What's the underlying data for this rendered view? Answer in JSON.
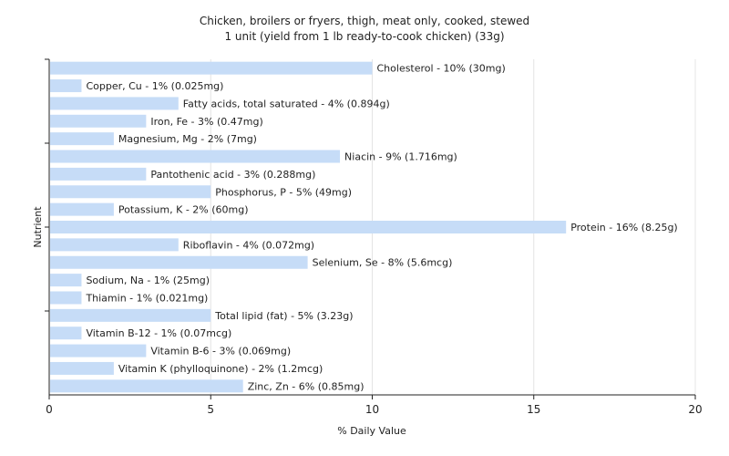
{
  "chart_data": {
    "type": "bar",
    "orientation": "horizontal",
    "title": "Chicken, broilers or fryers, thigh, meat only, cooked, stewed",
    "subtitle": "1 unit (yield from 1 lb ready-to-cook chicken) (33g)",
    "xlabel": "% Daily Value",
    "ylabel": "Nutrient",
    "xlim": [
      0,
      20
    ],
    "xticks": [
      "0",
      "5",
      "10",
      "15",
      "20"
    ],
    "grid": true,
    "bar_color": "#c6dcf7",
    "categories": [
      "Cholesterol",
      "Copper, Cu",
      "Fatty acids, total saturated",
      "Iron, Fe",
      "Magnesium, Mg",
      "Niacin",
      "Pantothenic acid",
      "Phosphorus, P",
      "Potassium, K",
      "Protein",
      "Riboflavin",
      "Selenium, Se",
      "Sodium, Na",
      "Thiamin",
      "Total lipid (fat)",
      "Vitamin B-12",
      "Vitamin B-6",
      "Vitamin K (phylloquinone)",
      "Zinc, Zn"
    ],
    "values": [
      10,
      1,
      4,
      3,
      2,
      9,
      3,
      5,
      2,
      16,
      4,
      8,
      1,
      1,
      5,
      1,
      3,
      2,
      6
    ],
    "labels": [
      "Cholesterol - 10% (30mg)",
      "Copper, Cu - 1% (0.025mg)",
      "Fatty acids, total saturated - 4% (0.894g)",
      "Iron, Fe - 3% (0.47mg)",
      "Magnesium, Mg - 2% (7mg)",
      "Niacin - 9% (1.716mg)",
      "Pantothenic acid - 3% (0.288mg)",
      "Phosphorus, P - 5% (49mg)",
      "Potassium, K - 2% (60mg)",
      "Protein - 16% (8.25g)",
      "Riboflavin - 4% (0.072mg)",
      "Selenium, Se - 8% (5.6mcg)",
      "Sodium, Na - 1% (25mg)",
      "Thiamin - 1% (0.021mg)",
      "Total lipid (fat) - 5% (3.23g)",
      "Vitamin B-12 - 1% (0.07mcg)",
      "Vitamin B-6 - 3% (0.069mg)",
      "Vitamin K (phylloquinone) - 2% (1.2mcg)",
      "Zinc, Zn - 6% (0.85mg)"
    ]
  }
}
